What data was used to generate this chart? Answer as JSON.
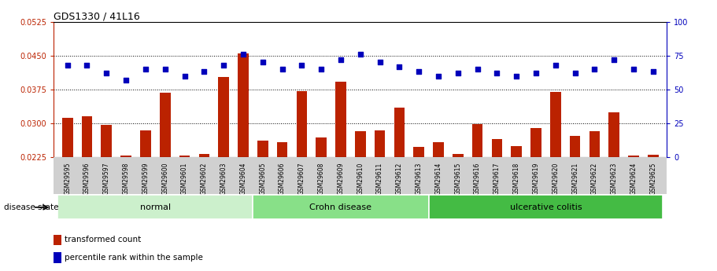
{
  "title": "GDS1330 / 41L16",
  "samples": [
    "GSM29595",
    "GSM29596",
    "GSM29597",
    "GSM29598",
    "GSM29599",
    "GSM29600",
    "GSM29601",
    "GSM29602",
    "GSM29603",
    "GSM29604",
    "GSM29605",
    "GSM29606",
    "GSM29607",
    "GSM29608",
    "GSM29609",
    "GSM29610",
    "GSM29611",
    "GSM29612",
    "GSM29613",
    "GSM29614",
    "GSM29615",
    "GSM29616",
    "GSM29617",
    "GSM29618",
    "GSM29619",
    "GSM29620",
    "GSM29621",
    "GSM29622",
    "GSM29623",
    "GSM29624",
    "GSM29625"
  ],
  "bar_values": [
    0.0312,
    0.0315,
    0.0297,
    0.0228,
    0.0285,
    0.0368,
    0.0228,
    0.0232,
    0.0402,
    0.0455,
    0.0262,
    0.0258,
    0.0372,
    0.0268,
    0.0392,
    0.0283,
    0.0285,
    0.0335,
    0.0248,
    0.0258,
    0.0232,
    0.0298,
    0.0265,
    0.025,
    0.029,
    0.037,
    0.0272,
    0.0283,
    0.0325,
    0.0228,
    0.023
  ],
  "pct_values": [
    68,
    68,
    62,
    57,
    65,
    65,
    60,
    63,
    68,
    76,
    70,
    65,
    68,
    65,
    72,
    76,
    70,
    67,
    63,
    60,
    62,
    65,
    62,
    60,
    62,
    68,
    62,
    65,
    72,
    65,
    63
  ],
  "groups": [
    {
      "label": "normal",
      "start": 0,
      "end": 10,
      "color": "#ccf0cc"
    },
    {
      "label": "Crohn disease",
      "start": 10,
      "end": 19,
      "color": "#88e088"
    },
    {
      "label": "ulcerative colitis",
      "start": 19,
      "end": 31,
      "color": "#44bb44"
    }
  ],
  "ylim_left": [
    0.0225,
    0.0525
  ],
  "ylim_right": [
    0,
    100
  ],
  "yticks_left": [
    0.0225,
    0.03,
    0.0375,
    0.045,
    0.0525
  ],
  "yticks_right": [
    0,
    25,
    50,
    75,
    100
  ],
  "bar_color": "#bb2200",
  "dot_color": "#0000bb",
  "grid_color": "#000000",
  "bg_color": "#ffffff",
  "legend_bar_label": "transformed count",
  "legend_dot_label": "percentile rank within the sample",
  "disease_state_label": "disease state"
}
